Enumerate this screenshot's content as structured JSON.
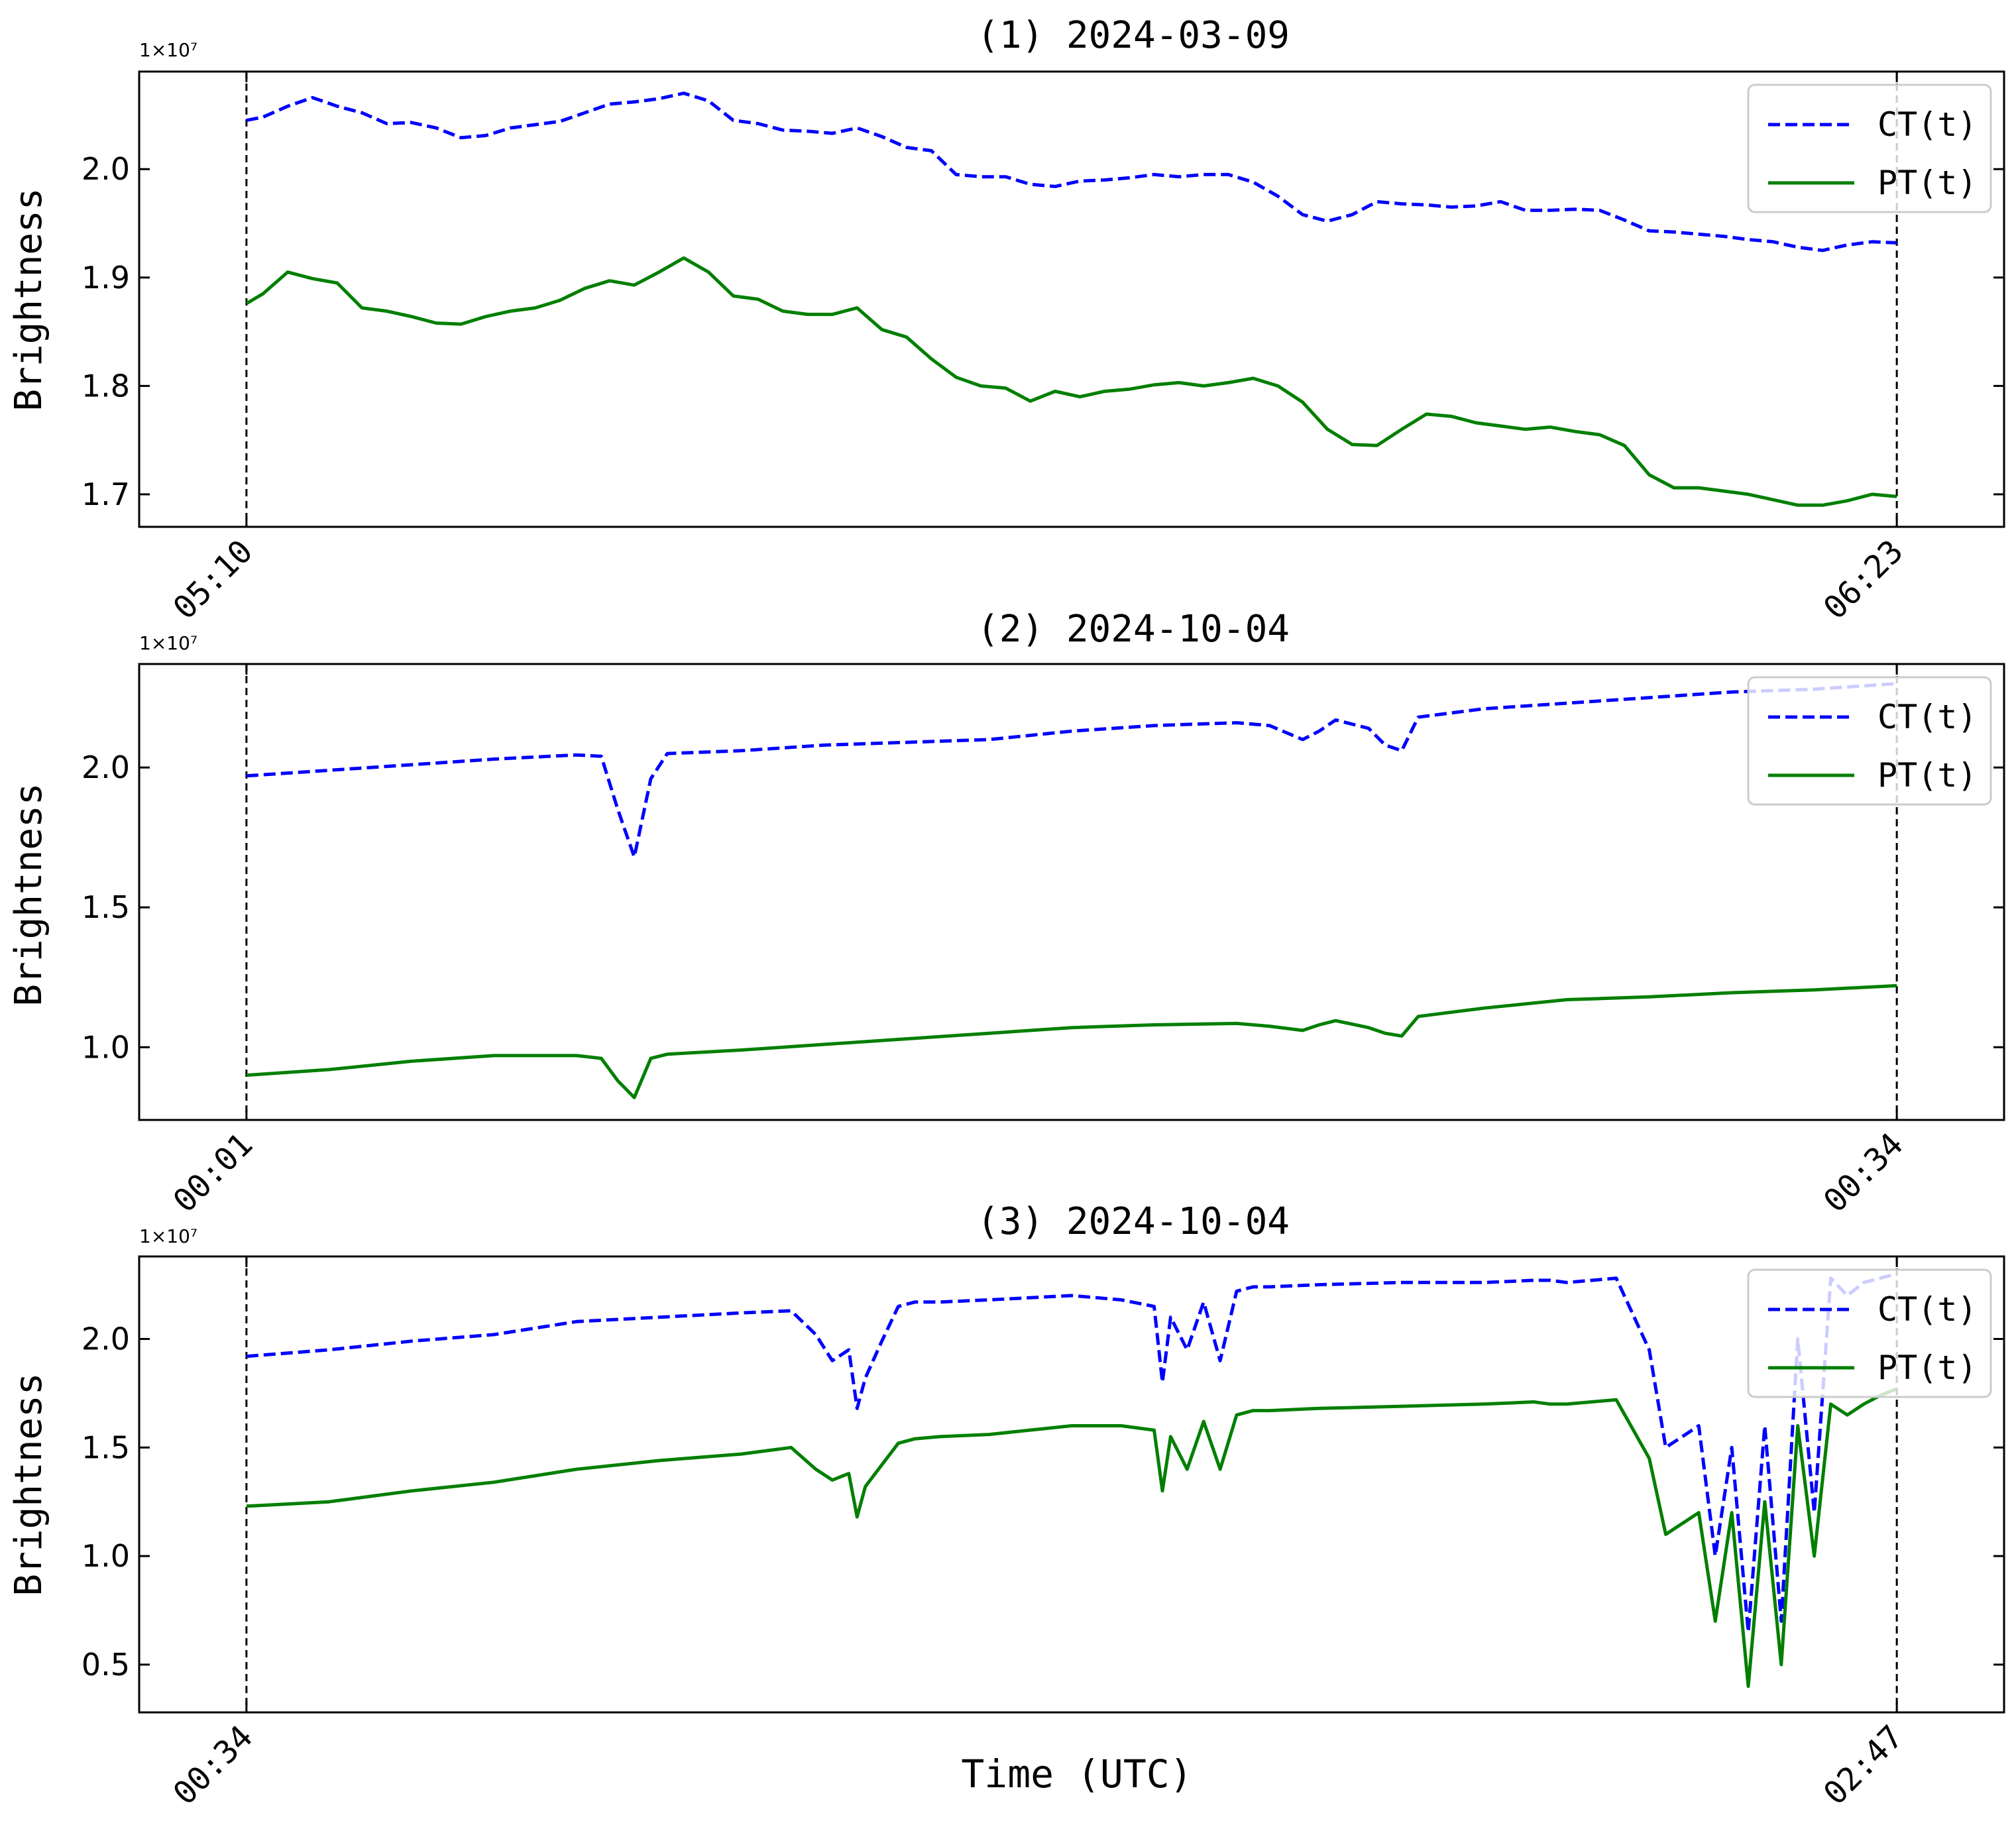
{
  "figure": {
    "xlabel": "Time (UTC)",
    "exponent_label": "1×10⁷"
  },
  "chart_data": [
    {
      "type": "line",
      "title": "(1) 2024-03-09",
      "ylabel": "Brightness",
      "ylim": [
        1.67,
        2.09
      ],
      "yticks": [
        1.7,
        1.8,
        1.9,
        2.0
      ],
      "ytick_labels": [
        "1.7",
        "1.8",
        "1.9",
        "2.0"
      ],
      "xlim": [
        -0.65,
        10.65
      ],
      "xticks": [
        0,
        10
      ],
      "xtick_labels": [
        "05:10",
        "06:23"
      ],
      "vlines": [
        0,
        10
      ],
      "legend": "top-right",
      "series": [
        {
          "name": "CT(t)",
          "style": "dashed",
          "color": "#0000ff",
          "x": [
            0,
            0.1,
            0.25,
            0.4,
            0.55,
            0.7,
            0.85,
            1.0,
            1.15,
            1.3,
            1.45,
            1.6,
            1.75,
            1.9,
            2.05,
            2.2,
            2.35,
            2.5,
            2.65,
            2.8,
            2.95,
            3.1,
            3.25,
            3.4,
            3.55,
            3.7,
            3.85,
            4.0,
            4.15,
            4.3,
            4.45,
            4.6,
            4.75,
            4.9,
            5.05,
            5.2,
            5.35,
            5.5,
            5.65,
            5.8,
            5.95,
            6.1,
            6.25,
            6.4,
            6.55,
            6.7,
            6.85,
            7.0,
            7.15,
            7.3,
            7.45,
            7.6,
            7.75,
            7.9,
            8.05,
            8.2,
            8.35,
            8.5,
            8.65,
            8.8,
            8.95,
            9.1,
            9.25,
            9.4,
            9.55,
            9.7,
            9.85,
            10.0
          ],
          "y": [
            2.045,
            2.048,
            2.058,
            2.066,
            2.058,
            2.052,
            2.042,
            2.043,
            2.038,
            2.029,
            2.031,
            2.038,
            2.041,
            2.044,
            2.052,
            2.06,
            2.062,
            2.065,
            2.07,
            2.063,
            2.045,
            2.042,
            2.036,
            2.035,
            2.033,
            2.038,
            2.03,
            2.02,
            2.017,
            1.995,
            1.993,
            1.993,
            1.986,
            1.984,
            1.989,
            1.99,
            1.992,
            1.995,
            1.993,
            1.995,
            1.995,
            1.988,
            1.975,
            1.958,
            1.952,
            1.958,
            1.97,
            1.968,
            1.967,
            1.965,
            1.966,
            1.97,
            1.962,
            1.962,
            1.963,
            1.962,
            1.953,
            1.943,
            1.942,
            1.94,
            1.938,
            1.935,
            1.933,
            1.928,
            1.925,
            1.93,
            1.933,
            1.932
          ]
        },
        {
          "name": "PT(t)",
          "style": "solid",
          "color": "#007f00",
          "x": [
            0,
            0.1,
            0.25,
            0.4,
            0.55,
            0.7,
            0.85,
            1.0,
            1.15,
            1.3,
            1.45,
            1.6,
            1.75,
            1.9,
            2.05,
            2.2,
            2.35,
            2.5,
            2.65,
            2.8,
            2.95,
            3.1,
            3.25,
            3.4,
            3.55,
            3.7,
            3.85,
            4.0,
            4.15,
            4.3,
            4.45,
            4.6,
            4.75,
            4.9,
            5.05,
            5.2,
            5.35,
            5.5,
            5.65,
            5.8,
            5.95,
            6.1,
            6.25,
            6.4,
            6.55,
            6.7,
            6.85,
            7.0,
            7.15,
            7.3,
            7.45,
            7.6,
            7.75,
            7.9,
            8.05,
            8.2,
            8.35,
            8.5,
            8.65,
            8.8,
            8.95,
            9.1,
            9.25,
            9.4,
            9.55,
            9.7,
            9.85,
            10.0
          ],
          "y": [
            1.876,
            1.885,
            1.905,
            1.899,
            1.895,
            1.872,
            1.869,
            1.864,
            1.858,
            1.857,
            1.864,
            1.869,
            1.872,
            1.879,
            1.89,
            1.897,
            1.893,
            1.905,
            1.918,
            1.905,
            1.883,
            1.88,
            1.869,
            1.866,
            1.866,
            1.872,
            1.852,
            1.845,
            1.825,
            1.808,
            1.8,
            1.798,
            1.786,
            1.795,
            1.79,
            1.795,
            1.797,
            1.801,
            1.803,
            1.8,
            1.803,
            1.807,
            1.8,
            1.785,
            1.76,
            1.746,
            1.745,
            1.76,
            1.774,
            1.772,
            1.766,
            1.763,
            1.76,
            1.762,
            1.758,
            1.755,
            1.745,
            1.718,
            1.706,
            1.706,
            1.703,
            1.7,
            1.695,
            1.69,
            1.69,
            1.694,
            1.7,
            1.698
          ]
        }
      ]
    },
    {
      "type": "line",
      "title": "(2) 2024-10-04",
      "ylabel": "Brightness",
      "ylim": [
        0.74,
        2.37
      ],
      "yticks": [
        1.0,
        1.5,
        2.0
      ],
      "ytick_labels": [
        "1.0",
        "1.5",
        "2.0"
      ],
      "xlim": [
        -0.65,
        10.65
      ],
      "xticks": [
        0,
        10
      ],
      "xtick_labels": [
        "00:01",
        "00:34"
      ],
      "vlines": [
        0,
        10
      ],
      "legend": "top-right",
      "series": [
        {
          "name": "CT(t)",
          "style": "dashed",
          "color": "#0000ff",
          "x": [
            0,
            0.5,
            1.0,
            1.5,
            2.0,
            2.15,
            2.25,
            2.35,
            2.45,
            2.55,
            3.0,
            3.5,
            4.0,
            4.5,
            5.0,
            5.5,
            6.0,
            6.2,
            6.4,
            6.5,
            6.6,
            6.8,
            6.9,
            7.0,
            7.1,
            7.5,
            8.0,
            8.5,
            9.0,
            9.5,
            10.0
          ],
          "y": [
            1.97,
            1.99,
            2.01,
            2.03,
            2.045,
            2.04,
            1.85,
            1.68,
            1.96,
            2.05,
            2.06,
            2.08,
            2.09,
            2.1,
            2.13,
            2.15,
            2.16,
            2.15,
            2.1,
            2.13,
            2.17,
            2.14,
            2.08,
            2.06,
            2.18,
            2.21,
            2.23,
            2.25,
            2.27,
            2.28,
            2.3
          ]
        },
        {
          "name": "PT(t)",
          "style": "solid",
          "color": "#007f00",
          "x": [
            0,
            0.5,
            1.0,
            1.5,
            2.0,
            2.15,
            2.25,
            2.35,
            2.45,
            2.55,
            3.0,
            3.5,
            4.0,
            4.5,
            5.0,
            5.5,
            6.0,
            6.2,
            6.4,
            6.5,
            6.6,
            6.8,
            6.9,
            7.0,
            7.1,
            7.5,
            8.0,
            8.5,
            9.0,
            9.5,
            10.0
          ],
          "y": [
            0.9,
            0.92,
            0.95,
            0.97,
            0.97,
            0.96,
            0.88,
            0.82,
            0.96,
            0.975,
            0.99,
            1.01,
            1.03,
            1.05,
            1.07,
            1.08,
            1.085,
            1.075,
            1.06,
            1.08,
            1.095,
            1.07,
            1.05,
            1.04,
            1.11,
            1.14,
            1.17,
            1.18,
            1.195,
            1.205,
            1.22
          ]
        }
      ]
    },
    {
      "type": "line",
      "title": "(3) 2024-10-04",
      "ylabel": "Brightness",
      "ylim": [
        0.28,
        2.38
      ],
      "yticks": [
        0.5,
        1.0,
        1.5,
        2.0
      ],
      "ytick_labels": [
        "0.5",
        "1.0",
        "1.5",
        "2.0"
      ],
      "xlim": [
        -0.65,
        10.65
      ],
      "xticks": [
        0,
        10
      ],
      "xtick_labels": [
        "00:34",
        "02:47"
      ],
      "vlines": [
        0,
        10
      ],
      "legend": "top-right",
      "series": [
        {
          "name": "CT(t)",
          "style": "dashed",
          "color": "#0000ff",
          "x": [
            0,
            0.5,
            1.0,
            1.5,
            2.0,
            2.5,
            3.0,
            3.3,
            3.45,
            3.55,
            3.65,
            3.7,
            3.75,
            3.85,
            3.95,
            4.05,
            4.2,
            4.5,
            5.0,
            5.3,
            5.5,
            5.55,
            5.6,
            5.7,
            5.8,
            5.9,
            6.0,
            6.1,
            6.2,
            6.5,
            7.0,
            7.5,
            7.8,
            7.9,
            8.0,
            8.3,
            8.5,
            8.6,
            8.8,
            8.9,
            9.0,
            9.1,
            9.2,
            9.3,
            9.4,
            9.5,
            9.6,
            9.7,
            9.8,
            9.9,
            10.0
          ],
          "y": [
            1.92,
            1.95,
            1.99,
            2.02,
            2.08,
            2.1,
            2.12,
            2.13,
            2.02,
            1.9,
            1.95,
            1.68,
            1.82,
            1.99,
            2.15,
            2.17,
            2.17,
            2.18,
            2.2,
            2.18,
            2.15,
            1.8,
            2.1,
            1.95,
            2.17,
            1.9,
            2.22,
            2.24,
            2.24,
            2.25,
            2.26,
            2.26,
            2.27,
            2.27,
            2.26,
            2.28,
            1.95,
            1.5,
            1.6,
            1.0,
            1.5,
            0.65,
            1.6,
            0.7,
            2.0,
            1.2,
            2.28,
            2.2,
            2.26,
            2.28,
            2.3
          ]
        },
        {
          "name": "PT(t)",
          "style": "solid",
          "color": "#007f00",
          "x": [
            0,
            0.5,
            1.0,
            1.5,
            2.0,
            2.5,
            3.0,
            3.3,
            3.45,
            3.55,
            3.65,
            3.7,
            3.75,
            3.85,
            3.95,
            4.05,
            4.2,
            4.5,
            5.0,
            5.3,
            5.5,
            5.55,
            5.6,
            5.7,
            5.8,
            5.9,
            6.0,
            6.1,
            6.2,
            6.5,
            7.0,
            7.5,
            7.8,
            7.9,
            8.0,
            8.3,
            8.5,
            8.6,
            8.8,
            8.9,
            9.0,
            9.1,
            9.2,
            9.3,
            9.4,
            9.5,
            9.6,
            9.7,
            9.8,
            9.9,
            10.0
          ],
          "y": [
            1.23,
            1.25,
            1.3,
            1.34,
            1.4,
            1.44,
            1.47,
            1.5,
            1.4,
            1.35,
            1.38,
            1.18,
            1.32,
            1.42,
            1.52,
            1.54,
            1.55,
            1.56,
            1.6,
            1.6,
            1.58,
            1.3,
            1.55,
            1.4,
            1.62,
            1.4,
            1.65,
            1.67,
            1.67,
            1.68,
            1.69,
            1.7,
            1.71,
            1.7,
            1.7,
            1.72,
            1.45,
            1.1,
            1.2,
            0.7,
            1.2,
            0.4,
            1.25,
            0.5,
            1.6,
            1.0,
            1.7,
            1.65,
            1.7,
            1.74,
            1.77
          ]
        }
      ]
    }
  ]
}
